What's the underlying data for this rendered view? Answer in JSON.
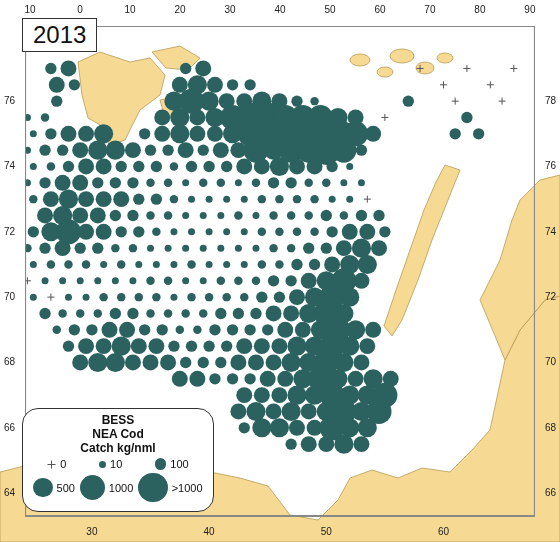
{
  "chart_data": {
    "type": "bubble",
    "title": "2013",
    "color": "#2b625f",
    "marker": "circle",
    "grid": false,
    "size_legend": {
      "title": [
        "BESS",
        "NEA Cod",
        "Catch kg/nml"
      ],
      "entries": [
        0,
        10,
        100,
        500,
        1000,
        {
          "value": 1500,
          "label": ">1000"
        }
      ]
    },
    "xlim": [
      24.3,
      67.8
    ],
    "xticks": [
      30,
      40,
      50,
      60
    ],
    "x2lim": [
      -11,
      91
    ],
    "x2ticks": [
      {
        "value": -10,
        "label": "10"
      },
      0,
      10,
      20,
      30,
      40,
      50,
      60,
      70,
      80,
      90
    ],
    "ylim": [
      63.3,
      78.3
    ],
    "yticks": [
      64,
      66,
      68,
      70,
      72,
      74,
      76
    ],
    "y2lim": [
      65.3,
      80.3
    ],
    "y2ticks": [
      66,
      68,
      70,
      72,
      74,
      76,
      78
    ],
    "stations": [
      {
        "lat": 77.0,
        "lon": [
          26.5,
          28,
          38,
          39.5,
          58,
          62,
          66
        ],
        "catch": [
          100,
          300,
          100,
          300,
          0,
          0,
          0
        ]
      },
      {
        "lat": 76.5,
        "lon": [
          27,
          28.5,
          37.5,
          39,
          40.5,
          42,
          43.5,
          60,
          64
        ],
        "catch": [
          300,
          100,
          300,
          500,
          300,
          100,
          100,
          0,
          0
        ]
      },
      {
        "lat": 76.0,
        "lon": [
          27,
          37,
          38.5,
          40,
          41.5,
          43,
          44.5,
          46,
          47.5,
          49,
          57,
          61,
          65
        ],
        "catch": [
          100,
          500,
          1000,
          500,
          300,
          300,
          500,
          300,
          100,
          30,
          100,
          0,
          0
        ]
      },
      {
        "lat": 75.5,
        "lon": [
          24.5,
          26,
          36,
          37.5,
          39,
          40.5,
          42,
          43.5,
          45,
          46.5,
          48,
          49.5,
          51,
          52.5,
          55,
          62
        ],
        "catch": [
          10,
          30,
          300,
          500,
          300,
          500,
          1000,
          1500,
          1500,
          1000,
          1000,
          1000,
          500,
          300,
          0,
          100
        ]
      },
      {
        "lat": 75.0,
        "lon": [
          25,
          26.5,
          28,
          29.5,
          31,
          34.5,
          36,
          37.5,
          39,
          40.5,
          42,
          43.5,
          45,
          46.5,
          48,
          49.5,
          51,
          52.5,
          54,
          61,
          63
        ],
        "catch": [
          10,
          100,
          300,
          300,
          500,
          100,
          300,
          500,
          300,
          300,
          500,
          1000,
          1500,
          1000,
          1000,
          1500,
          1500,
          1000,
          300,
          100,
          100
        ]
      },
      {
        "lat": 74.5,
        "lon": [
          24.5,
          26,
          27.5,
          29,
          30.5,
          32,
          33.5,
          35,
          36.5,
          38,
          39.5,
          41,
          42.5,
          44,
          45.5,
          47,
          48.5,
          50,
          51.5,
          53
        ],
        "catch": [
          10,
          100,
          100,
          300,
          500,
          500,
          300,
          100,
          100,
          300,
          100,
          300,
          300,
          1000,
          500,
          1000,
          1000,
          1500,
          1000,
          100
        ]
      },
      {
        "lat": 74.0,
        "lon": [
          25,
          26.5,
          28,
          29.5,
          31,
          32.5,
          34,
          35.5,
          37,
          38.5,
          40,
          41.5,
          43,
          44.5,
          46,
          47.5,
          49,
          50.5,
          52
        ],
        "catch": [
          10,
          30,
          100,
          300,
          300,
          100,
          100,
          100,
          30,
          100,
          100,
          100,
          300,
          300,
          500,
          300,
          300,
          100,
          10
        ]
      },
      {
        "lat": 73.5,
        "lon": [
          24.5,
          26,
          27.5,
          29,
          30.5,
          32,
          33.5,
          35,
          36.5,
          38,
          39.5,
          41,
          42.5,
          44,
          45.5,
          47,
          48.5,
          50,
          51.5,
          53
        ],
        "catch": [
          10,
          100,
          300,
          300,
          100,
          100,
          100,
          30,
          30,
          10,
          30,
          30,
          10,
          30,
          100,
          100,
          30,
          30,
          10,
          10
        ]
      },
      {
        "lat": 73.0,
        "lon": [
          25,
          26.5,
          28,
          29.5,
          31,
          32.5,
          34,
          35.5,
          37,
          38.5,
          40,
          41.5,
          43,
          44.5,
          46,
          47.5,
          49,
          50.5,
          52,
          53.5
        ],
        "catch": [
          30,
          300,
          500,
          300,
          300,
          300,
          100,
          100,
          30,
          10,
          10,
          10,
          10,
          30,
          30,
          30,
          30,
          10,
          10,
          0
        ]
      },
      {
        "lat": 72.5,
        "lon": [
          26,
          27.5,
          29,
          30.5,
          32,
          33.5,
          35,
          36.5,
          38,
          39.5,
          41,
          42.5,
          44,
          45.5,
          47,
          48.5,
          50,
          51.5,
          53,
          54.5
        ],
        "catch": [
          300,
          500,
          300,
          300,
          100,
          100,
          30,
          30,
          10,
          10,
          10,
          30,
          10,
          30,
          30,
          30,
          100,
          30,
          100,
          100
        ]
      },
      {
        "lat": 72.0,
        "lon": [
          25,
          26.5,
          28,
          29.5,
          31,
          32.5,
          34,
          35.5,
          37,
          38.5,
          40,
          41.5,
          43,
          44.5,
          46,
          47.5,
          49,
          50.5,
          52,
          53.5,
          55
        ],
        "catch": [
          100,
          500,
          1000,
          300,
          300,
          100,
          100,
          30,
          10,
          10,
          10,
          10,
          10,
          30,
          30,
          30,
          30,
          100,
          300,
          300,
          100
        ]
      },
      {
        "lat": 71.5,
        "lon": [
          24.5,
          26,
          27.5,
          29,
          30.5,
          32,
          33.5,
          35,
          36.5,
          38,
          39.5,
          41,
          42.5,
          44,
          45.5,
          47,
          48.5,
          50,
          51.5,
          53,
          54.5
        ],
        "catch": [
          30,
          100,
          300,
          100,
          100,
          30,
          30,
          10,
          10,
          10,
          10,
          10,
          10,
          10,
          30,
          30,
          100,
          100,
          300,
          500,
          300
        ]
      },
      {
        "lat": 71.0,
        "lon": [
          25,
          26.5,
          28,
          29.5,
          31,
          32.5,
          34,
          35.5,
          37,
          38.5,
          40,
          41.5,
          43,
          44.5,
          46,
          47.5,
          49,
          50.5,
          52,
          53.5
        ],
        "catch": [
          10,
          30,
          30,
          30,
          10,
          30,
          10,
          10,
          10,
          30,
          10,
          10,
          10,
          30,
          30,
          100,
          100,
          300,
          500,
          500
        ]
      },
      {
        "lat": 70.5,
        "lon": [
          24.5,
          26,
          27.5,
          29,
          30.5,
          32,
          33.5,
          35,
          36.5,
          38,
          39.5,
          41,
          42.5,
          44,
          45.5,
          47,
          48.5,
          50,
          51.5,
          53
        ],
        "catch": [
          0,
          10,
          10,
          10,
          10,
          10,
          10,
          30,
          30,
          10,
          10,
          30,
          30,
          30,
          100,
          100,
          300,
          500,
          1000,
          300
        ]
      },
      {
        "lat": 70.0,
        "lon": [
          25,
          26.5,
          28,
          29.5,
          31,
          32.5,
          34,
          35.5,
          37,
          38.5,
          40,
          41.5,
          43,
          44.5,
          46,
          47.5,
          49,
          50.5,
          52
        ],
        "catch": [
          10,
          0,
          10,
          10,
          30,
          30,
          30,
          30,
          10,
          30,
          30,
          30,
          30,
          100,
          100,
          300,
          500,
          1000,
          500
        ]
      },
      {
        "lat": 69.5,
        "lon": [
          26,
          27.5,
          29,
          30.5,
          32,
          33.5,
          35,
          36.5,
          38,
          39.5,
          41,
          42.5,
          44,
          45.5,
          47,
          48.5,
          50,
          51.5
        ],
        "catch": [
          100,
          30,
          30,
          30,
          100,
          100,
          30,
          30,
          30,
          30,
          100,
          100,
          100,
          300,
          300,
          500,
          1000,
          500
        ]
      },
      {
        "lat": 69.0,
        "lon": [
          27,
          28.5,
          30,
          31.5,
          33,
          34.5,
          36,
          37.5,
          39,
          40.5,
          42,
          43.5,
          45,
          46.5,
          48,
          49.5,
          51,
          52.5,
          54
        ],
        "catch": [
          30,
          100,
          100,
          300,
          300,
          100,
          100,
          30,
          30,
          100,
          100,
          100,
          100,
          300,
          300,
          500,
          1000,
          500,
          300
        ]
      },
      {
        "lat": 68.5,
        "lon": [
          28,
          29.5,
          31,
          32.5,
          34,
          35.5,
          37,
          38.5,
          40,
          41.5,
          43,
          44.5,
          46,
          47.5,
          49,
          50.5,
          52,
          53.5
        ],
        "catch": [
          100,
          300,
          300,
          500,
          300,
          300,
          100,
          100,
          100,
          100,
          300,
          300,
          300,
          500,
          500,
          1000,
          500,
          300
        ]
      },
      {
        "lat": 68.0,
        "lon": [
          29,
          30.5,
          32,
          33.5,
          35,
          36.5,
          38,
          39.5,
          41,
          42.5,
          44,
          45.5,
          47,
          48.5,
          50,
          51.5,
          53
        ],
        "catch": [
          300,
          500,
          500,
          300,
          300,
          300,
          100,
          100,
          100,
          300,
          300,
          300,
          500,
          500,
          1000,
          500,
          300
        ]
      },
      {
        "lat": 67.5,
        "lon": [
          37.5,
          39,
          40.5,
          42,
          43.5,
          45,
          46.5,
          48,
          49.5,
          51,
          52.5,
          54,
          55.5
        ],
        "catch": [
          300,
          300,
          100,
          100,
          100,
          300,
          300,
          500,
          1000,
          500,
          300,
          500,
          300
        ]
      },
      {
        "lat": 67.0,
        "lon": [
          43,
          44.5,
          46,
          47.5,
          49,
          50.5,
          52,
          53.5,
          55
        ],
        "catch": [
          300,
          300,
          300,
          500,
          500,
          1000,
          500,
          500,
          1000
        ]
      },
      {
        "lat": 66.5,
        "lon": [
          42.5,
          44,
          45.5,
          47,
          48.5,
          50,
          51.5,
          53,
          54.5
        ],
        "catch": [
          300,
          500,
          300,
          500,
          300,
          500,
          1000,
          500,
          1000
        ]
      },
      {
        "lat": 66.0,
        "lon": [
          43,
          44.5,
          46,
          47.5,
          49,
          50.5,
          52,
          53.5
        ],
        "catch": [
          100,
          500,
          500,
          300,
          300,
          1000,
          500,
          500
        ]
      },
      {
        "lat": 65.5,
        "lon": [
          47,
          48.5,
          50,
          51.5,
          53
        ],
        "catch": [
          100,
          300,
          300,
          500,
          300
        ]
      }
    ]
  }
}
